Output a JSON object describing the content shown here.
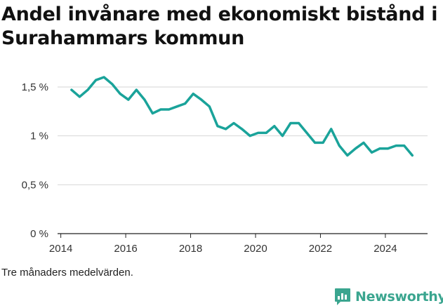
{
  "chart_data": {
    "type": "line",
    "title": "Andel invånare med ekonomiskt bistånd i Surahammars kommun",
    "xlabel": "",
    "ylabel": "",
    "x_ticks": [
      "2014",
      "2016",
      "2018",
      "2020",
      "2022",
      "2024"
    ],
    "y_ticks": [
      "0 %",
      "0,5 %",
      "1 %",
      "1,5 %"
    ],
    "xlim": [
      2013.9,
      2025.3
    ],
    "ylim": [
      0,
      1.6
    ],
    "grid": true,
    "line_color": "#1aa39a",
    "series": [
      {
        "x": [
          2014.33,
          2014.58,
          2014.83,
          2015.08,
          2015.33,
          2015.58,
          2015.83,
          2016.08,
          2016.33,
          2016.58,
          2016.83,
          2017.08,
          2017.33,
          2017.58,
          2017.83,
          2018.08,
          2018.33,
          2018.58,
          2018.83,
          2019.08,
          2019.33,
          2019.58,
          2019.83,
          2020.08,
          2020.33,
          2020.58,
          2020.83,
          2021.08,
          2021.33,
          2021.58,
          2021.83,
          2022.08,
          2022.33,
          2022.58,
          2022.83,
          2023.08,
          2023.33,
          2023.58,
          2023.83,
          2024.08,
          2024.33,
          2024.58,
          2024.83
        ],
        "values": [
          1.47,
          1.4,
          1.47,
          1.57,
          1.6,
          1.53,
          1.43,
          1.37,
          1.47,
          1.37,
          1.23,
          1.27,
          1.27,
          1.3,
          1.33,
          1.43,
          1.37,
          1.3,
          1.1,
          1.07,
          1.13,
          1.07,
          1.0,
          1.03,
          1.03,
          1.1,
          1.0,
          1.13,
          1.13,
          1.03,
          0.93,
          0.93,
          1.07,
          0.9,
          0.8,
          0.87,
          0.93,
          0.83,
          0.87,
          0.87,
          0.9,
          0.9,
          0.8
        ]
      }
    ]
  },
  "footer": {
    "note": "Tre månaders medelvärden.",
    "brand": "Newsworthy",
    "brand_color": "#3aa58f",
    "brand_icon": "bar-chart-speech-bubble-icon"
  }
}
